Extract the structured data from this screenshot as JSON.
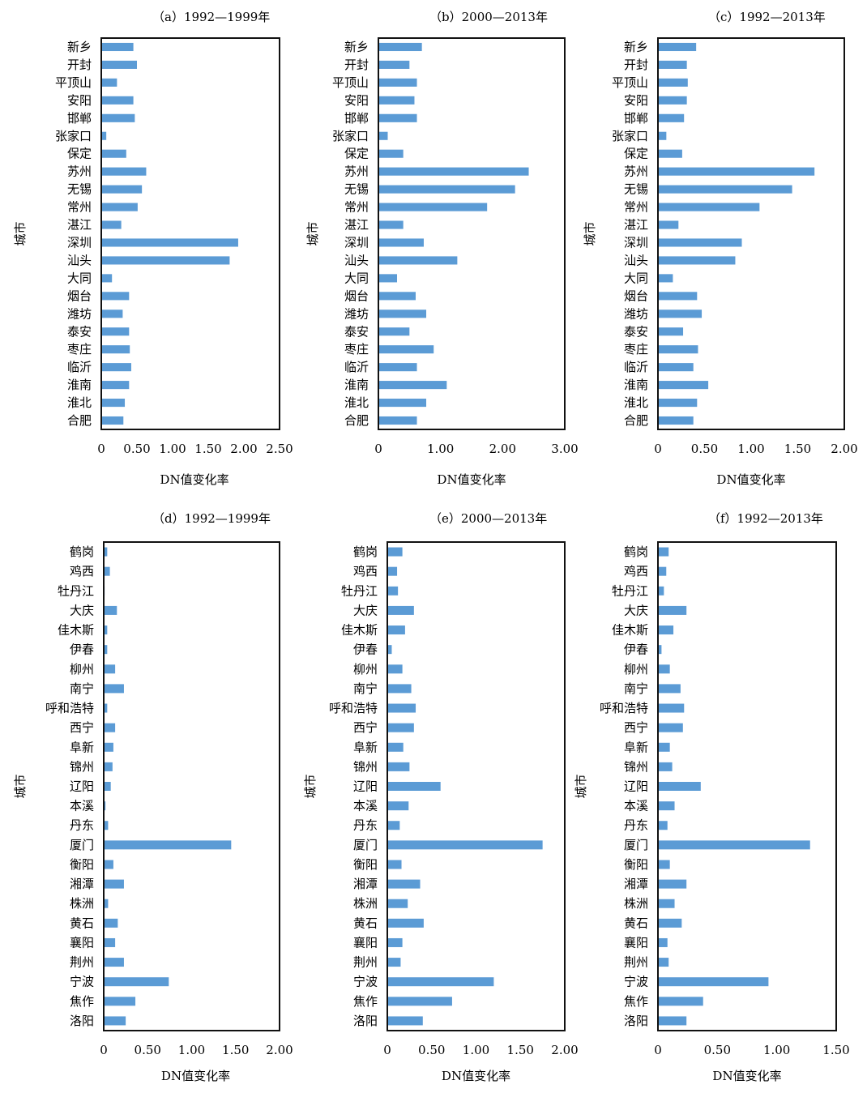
{
  "chart_data": [
    {
      "type": "bar",
      "orientation": "horizontal",
      "title": "（a）1992—1999年",
      "xlabel": "DN值变化率",
      "ylabel": "城市",
      "xlim": [
        0,
        2.5
      ],
      "xticks": [
        "0",
        "0.50",
        "1.00",
        "1.50",
        "2.00",
        "2.50"
      ],
      "xtick_values": [
        0,
        0.5,
        1.0,
        1.5,
        2.0,
        2.5
      ],
      "categories": [
        "新乡",
        "开封",
        "平顶山",
        "安阳",
        "邯郸",
        "张家口",
        "保定",
        "苏州",
        "无锡",
        "常州",
        "湛江",
        "深圳",
        "汕头",
        "大同",
        "烟台",
        "潍坊",
        "泰安",
        "枣庄",
        "临沂",
        "淮南",
        "淮北",
        "合肥"
      ],
      "values": [
        0.45,
        0.5,
        0.22,
        0.45,
        0.47,
        0.07,
        0.35,
        0.63,
        0.57,
        0.51,
        0.28,
        1.92,
        1.8,
        0.15,
        0.39,
        0.3,
        0.39,
        0.4,
        0.42,
        0.39,
        0.33,
        0.31
      ]
    },
    {
      "type": "bar",
      "orientation": "horizontal",
      "title": "（b）2000—2013年",
      "xlabel": "DN值变化率",
      "ylabel": "城市",
      "xlim": [
        0,
        3.0
      ],
      "xticks": [
        "0",
        "1.00",
        "2.00",
        "3.00"
      ],
      "xtick_values": [
        0,
        1.0,
        2.0,
        3.0
      ],
      "categories": [
        "新乡",
        "开封",
        "平顶山",
        "安阳",
        "邯郸",
        "张家口",
        "保定",
        "苏州",
        "无锡",
        "常州",
        "湛江",
        "深圳",
        "汕头",
        "大同",
        "烟台",
        "潍坊",
        "泰安",
        "枣庄",
        "临沂",
        "淮南",
        "淮北",
        "合肥"
      ],
      "values": [
        0.7,
        0.5,
        0.62,
        0.58,
        0.62,
        0.15,
        0.4,
        2.42,
        2.2,
        1.75,
        0.4,
        0.73,
        1.27,
        0.3,
        0.6,
        0.77,
        0.5,
        0.89,
        0.62,
        1.1,
        0.77,
        0.62
      ]
    },
    {
      "type": "bar",
      "orientation": "horizontal",
      "title": "（c）1992—2013年",
      "xlabel": "DN值变化率",
      "ylabel": "城市",
      "xlim": [
        0,
        2.0
      ],
      "xticks": [
        "0",
        "0.50",
        "1.00",
        "1.50",
        "2.00"
      ],
      "xtick_values": [
        0,
        0.5,
        1.0,
        1.5,
        2.0
      ],
      "categories": [
        "新乡",
        "开封",
        "平顶山",
        "安阳",
        "邯郸",
        "张家口",
        "保定",
        "苏州",
        "无锡",
        "常州",
        "湛江",
        "深圳",
        "汕头",
        "大同",
        "烟台",
        "潍坊",
        "泰安",
        "枣庄",
        "临沂",
        "淮南",
        "淮北",
        "合肥"
      ],
      "values": [
        0.41,
        0.31,
        0.32,
        0.31,
        0.28,
        0.09,
        0.26,
        1.68,
        1.44,
        1.09,
        0.22,
        0.9,
        0.83,
        0.16,
        0.42,
        0.47,
        0.27,
        0.43,
        0.38,
        0.54,
        0.42,
        0.38
      ]
    },
    {
      "type": "bar",
      "orientation": "horizontal",
      "title": "（d）1992—1999年",
      "xlabel": "DN值变化率",
      "ylabel": "城市",
      "xlim": [
        0,
        2.0
      ],
      "xticks": [
        "0",
        "0.50",
        "1.00",
        "1.50",
        "2.00"
      ],
      "xtick_values": [
        0,
        0.5,
        1.0,
        1.5,
        2.0
      ],
      "categories": [
        "鹤岗",
        "鸡西",
        "牡丹江",
        "大庆",
        "佳木斯",
        "伊春",
        "柳州",
        "南宁",
        "呼和浩特",
        "西宁",
        "阜新",
        "锦州",
        "辽阳",
        "本溪",
        "丹东",
        "厦门",
        "衡阳",
        "湘潭",
        "株洲",
        "黄石",
        "襄阳",
        "荆州",
        "宁波",
        "焦作",
        "洛阳"
      ],
      "values": [
        0.04,
        0.07,
        0.01,
        0.15,
        0.04,
        0.04,
        0.13,
        0.23,
        0.04,
        0.13,
        0.11,
        0.1,
        0.08,
        0.02,
        0.05,
        1.45,
        0.11,
        0.23,
        0.05,
        0.16,
        0.13,
        0.23,
        0.74,
        0.36,
        0.25
      ]
    },
    {
      "type": "bar",
      "orientation": "horizontal",
      "title": "（e）2000—2013年",
      "xlabel": "DN值变化率",
      "ylabel": "城市",
      "xlim": [
        0,
        2.0
      ],
      "xticks": [
        "0",
        "0.50",
        "1.00",
        "1.50",
        "2.00"
      ],
      "xtick_values": [
        0,
        0.5,
        1.0,
        1.5,
        2.0
      ],
      "categories": [
        "鹤岗",
        "鸡西",
        "牡丹江",
        "大庆",
        "佳木斯",
        "伊春",
        "柳州",
        "南宁",
        "呼和浩特",
        "西宁",
        "阜新",
        "锦州",
        "辽阳",
        "本溪",
        "丹东",
        "厦门",
        "衡阳",
        "湘潭",
        "株洲",
        "黄石",
        "襄阳",
        "荆州",
        "宁波",
        "焦作",
        "洛阳"
      ],
      "values": [
        0.17,
        0.11,
        0.12,
        0.3,
        0.2,
        0.05,
        0.17,
        0.27,
        0.32,
        0.3,
        0.18,
        0.25,
        0.6,
        0.24,
        0.14,
        1.75,
        0.16,
        0.37,
        0.23,
        0.41,
        0.17,
        0.15,
        1.2,
        0.73,
        0.4
      ]
    },
    {
      "type": "bar",
      "orientation": "horizontal",
      "title": "（f）1992—2013年",
      "xlabel": "DN值变化率",
      "ylabel": "城市",
      "xlim": [
        0,
        1.5
      ],
      "xticks": [
        "0",
        "0.50",
        "1.00",
        "1.50"
      ],
      "xtick_values": [
        0,
        0.5,
        1.0,
        1.5
      ],
      "categories": [
        "鹤岗",
        "鸡西",
        "牡丹江",
        "大庆",
        "佳木斯",
        "伊春",
        "柳州",
        "南宁",
        "呼和浩特",
        "西宁",
        "阜新",
        "锦州",
        "辽阳",
        "本溪",
        "丹东",
        "厦门",
        "衡阳",
        "湘潭",
        "株洲",
        "黄石",
        "襄阳",
        "荆州",
        "宁波",
        "焦作",
        "洛阳"
      ],
      "values": [
        0.09,
        0.07,
        0.05,
        0.24,
        0.13,
        0.03,
        0.1,
        0.19,
        0.22,
        0.21,
        0.1,
        0.12,
        0.36,
        0.14,
        0.08,
        1.28,
        0.1,
        0.24,
        0.14,
        0.2,
        0.08,
        0.09,
        0.93,
        0.38,
        0.24
      ]
    }
  ]
}
